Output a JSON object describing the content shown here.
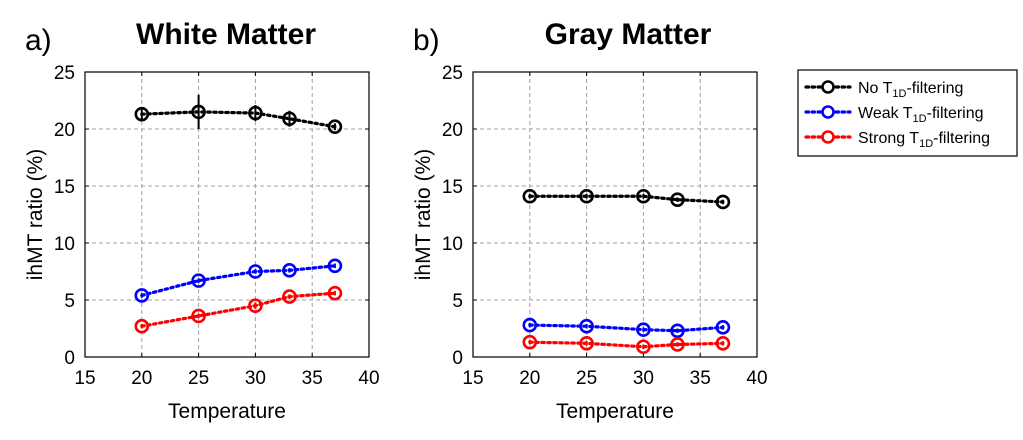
{
  "chart_data": [
    {
      "type": "line",
      "panel_label": "a)",
      "title": "White Matter",
      "xlabel": "Temperature",
      "ylabel": "ihMT ratio (%)",
      "xlim": [
        15,
        40
      ],
      "ylim": [
        0,
        25
      ],
      "xticks": [
        "15",
        "20",
        "25",
        "30",
        "35",
        "40"
      ],
      "yticks": [
        "0",
        "5",
        "10",
        "15",
        "20",
        "25"
      ],
      "grid": true,
      "x": [
        20,
        25,
        30,
        33,
        37
      ],
      "series": [
        {
          "name": "No T1D-filtering",
          "color": "#000000",
          "values": [
            21.3,
            21.5,
            21.4,
            20.9,
            20.2
          ],
          "errors": [
            0.5,
            1.5,
            0.7,
            0.7,
            0.3
          ]
        },
        {
          "name": "Weak T1D-filtering",
          "color": "#0000ff",
          "values": [
            5.4,
            6.7,
            7.5,
            7.6,
            8.0
          ],
          "errors": [
            0.2,
            0.2,
            0.2,
            0.2,
            0.2
          ]
        },
        {
          "name": "Strong T1D-filtering",
          "color": "#ff0000",
          "values": [
            2.7,
            3.6,
            4.5,
            5.3,
            5.6
          ],
          "errors": [
            0.2,
            0.2,
            0.3,
            0.2,
            0.2
          ]
        }
      ]
    },
    {
      "type": "line",
      "panel_label": "b)",
      "title": "Gray Matter",
      "xlabel": "Temperature",
      "ylabel": "ihMT ratio (%)",
      "xlim": [
        15,
        40
      ],
      "ylim": [
        0,
        25
      ],
      "xticks": [
        "15",
        "20",
        "25",
        "30",
        "35",
        "40"
      ],
      "yticks": [
        "0",
        "5",
        "10",
        "15",
        "20",
        "25"
      ],
      "grid": true,
      "x": [
        20,
        25,
        30,
        33,
        37
      ],
      "series": [
        {
          "name": "No T1D-filtering",
          "color": "#000000",
          "values": [
            14.1,
            14.1,
            14.1,
            13.8,
            13.6
          ],
          "errors": [
            0.2,
            0.2,
            0.2,
            0.2,
            0.2
          ]
        },
        {
          "name": "Weak T1D-filtering",
          "color": "#0000ff",
          "values": [
            2.8,
            2.7,
            2.4,
            2.3,
            2.6
          ],
          "errors": [
            0.2,
            0.2,
            0.2,
            0.2,
            0.2
          ]
        },
        {
          "name": "Strong T1D-filtering",
          "color": "#ff0000",
          "values": [
            1.3,
            1.2,
            0.9,
            1.1,
            1.2
          ],
          "errors": [
            0.2,
            0.2,
            0.2,
            0.2,
            0.2
          ]
        }
      ]
    }
  ],
  "legend": {
    "placement": "right",
    "entries": [
      {
        "prefix": "No T",
        "subscript": "1D",
        "suffix": "-filtering",
        "color": "#000000"
      },
      {
        "prefix": "Weak T",
        "subscript": "1D",
        "suffix": "-filtering",
        "color": "#0000ff"
      },
      {
        "prefix": "Strong T",
        "subscript": "1D",
        "suffix": "-filtering",
        "color": "#ff0000"
      }
    ]
  }
}
